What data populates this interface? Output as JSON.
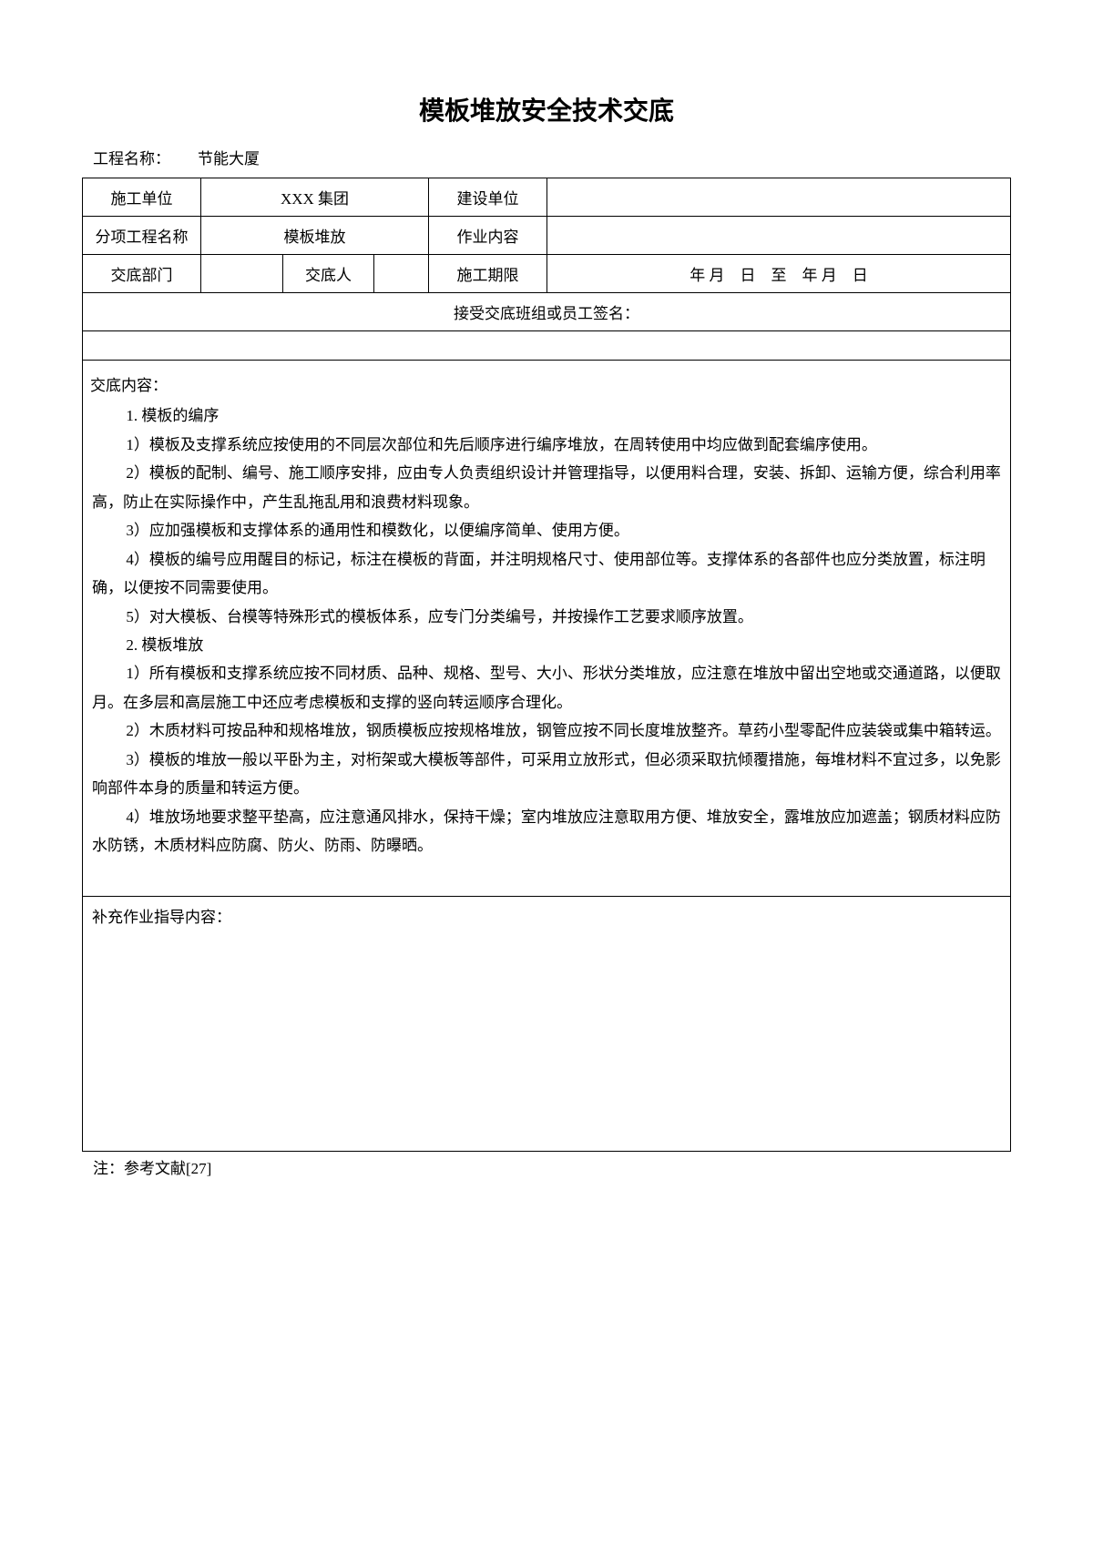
{
  "title": "模板堆放安全技术交底",
  "project_label": "工程名称：",
  "project_value": "节能大厦",
  "table": {
    "row1": {
      "l1": "施工单位",
      "v1": "XXX 集团",
      "l2": "建设单位",
      "v2": ""
    },
    "row2": {
      "l1": "分项工程名称",
      "v1": "模板堆放",
      "l2": "作业内容",
      "v2": ""
    },
    "row3": {
      "l1": "交底部门",
      "v1a": "",
      "l2": "交底人",
      "v1b": "",
      "l3": "施工期限",
      "v3": "年 月　日　至　年 月　日"
    },
    "signature": "接受交底班组或员工签名："
  },
  "content": {
    "heading": "交底内容：",
    "s1": "1. 模板的编序",
    "p1": "1）模板及支撑系统应按使用的不同层次部位和先后顺序进行编序堆放，在周转使用中均应做到配套编序使用。",
    "p2": "2）模板的配制、编号、施工顺序安排，应由专人负责组织设计并管理指导，以便用料合理，安装、拆卸、运输方便，综合利用率高，防止在实际操作中，产生乱拖乱用和浪费材料现象。",
    "p3": "3）应加强模板和支撑体系的通用性和模数化，以便编序简单、使用方便。",
    "p4": "4）模板的编号应用醒目的标记，标注在模板的背面，并注明规格尺寸、使用部位等。支撑体系的各部件也应分类放置，标注明确，以便按不同需要使用。",
    "p5": "5）对大模板、台模等特殊形式的模板体系，应专门分类编号，并按操作工艺要求顺序放置。",
    "s2": "2. 模板堆放",
    "p6": "1）所有模板和支撑系统应按不同材质、品种、规格、型号、大小、形状分类堆放，应注意在堆放中留出空地或交通道路，以便取月。在多层和高层施工中还应考虑模板和支撑的竖向转运顺序合理化。",
    "p7": "2）木质材料可按品种和规格堆放，钢质模板应按规格堆放，钢管应按不同长度堆放整齐。草药小型零配件应装袋或集中箱转运。",
    "p8": "3）模板的堆放一般以平卧为主，对桁架或大模板等部件，可采用立放形式，但必须采取抗倾覆措施，每堆材料不宜过多，以免影响部件本身的质量和转运方便。",
    "p9": "4）堆放场地要求整平垫高，应注意通风排水，保持干燥；室内堆放应注意取用方便、堆放安全，露堆放应加遮盖；钢质材料应防水防锈，木质材料应防腐、防火、防雨、防曝晒。"
  },
  "supplement_label": "补充作业指导内容：",
  "footnote": "注：参考文献[27]"
}
